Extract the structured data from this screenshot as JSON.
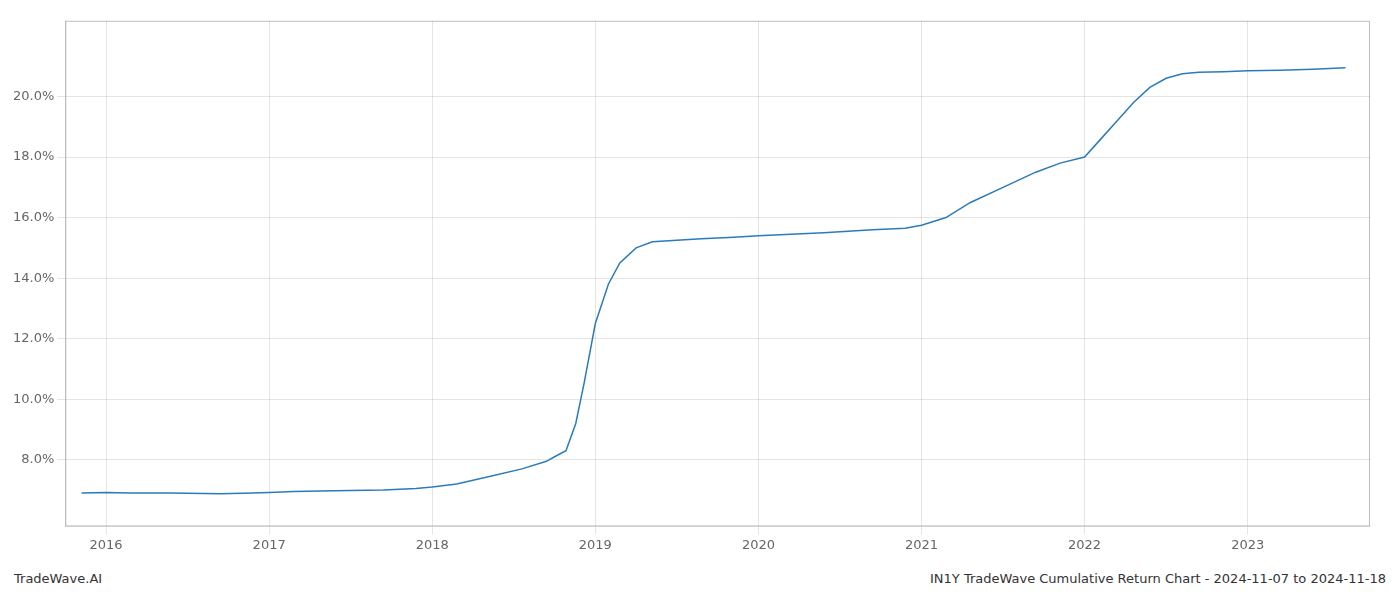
{
  "chart_data": {
    "type": "line",
    "x": [
      2015.85,
      2016.0,
      2016.15,
      2016.4,
      2016.7,
      2016.9,
      2017.0,
      2017.15,
      2017.4,
      2017.7,
      2017.9,
      2018.0,
      2018.15,
      2018.35,
      2018.55,
      2018.7,
      2018.75,
      2018.82,
      2018.88,
      2018.93,
      2019.0,
      2019.08,
      2019.15,
      2019.25,
      2019.35,
      2019.5,
      2019.65,
      2019.85,
      2020.0,
      2020.2,
      2020.4,
      2020.55,
      2020.7,
      2020.9,
      2021.0,
      2021.15,
      2021.3,
      2021.5,
      2021.7,
      2021.85,
      2022.0,
      2022.1,
      2022.2,
      2022.3,
      2022.4,
      2022.5,
      2022.6,
      2022.7,
      2022.85,
      2023.0,
      2023.2,
      2023.4,
      2023.6
    ],
    "values": [
      6.9,
      6.92,
      6.9,
      6.9,
      6.88,
      6.9,
      6.92,
      6.95,
      6.98,
      7.0,
      7.05,
      7.1,
      7.2,
      7.45,
      7.7,
      7.95,
      8.1,
      8.3,
      9.2,
      10.5,
      12.5,
      13.8,
      14.5,
      15.0,
      15.2,
      15.25,
      15.3,
      15.35,
      15.4,
      15.45,
      15.5,
      15.55,
      15.6,
      15.65,
      15.75,
      16.0,
      16.5,
      17.0,
      17.5,
      17.8,
      18.0,
      18.6,
      19.2,
      19.8,
      20.3,
      20.6,
      20.75,
      20.8,
      20.82,
      20.85,
      20.87,
      20.9,
      20.95
    ],
    "color": "#2b7bba",
    "xlim": [
      2015.75,
      2023.75
    ],
    "xticks": [
      2016,
      2017,
      2018,
      2019,
      2020,
      2021,
      2022,
      2023
    ],
    "ylim": [
      5.8,
      22.5
    ],
    "yticks": [
      {
        "value": 8.0,
        "label": "8.0%"
      },
      {
        "value": 10.0,
        "label": "10.0%"
      },
      {
        "value": 12.0,
        "label": "12.0%"
      },
      {
        "value": 14.0,
        "label": "14.0%"
      },
      {
        "value": 16.0,
        "label": "16.0%"
      },
      {
        "value": 18.0,
        "label": "18.0%"
      },
      {
        "value": 20.0,
        "label": "20.0%"
      }
    ],
    "grid": true,
    "annotations": [
      "TradeWave.AI",
      "IN1Y TradeWave Cumulative Return Chart - 2024-11-07 to 2024-11-18"
    ]
  }
}
